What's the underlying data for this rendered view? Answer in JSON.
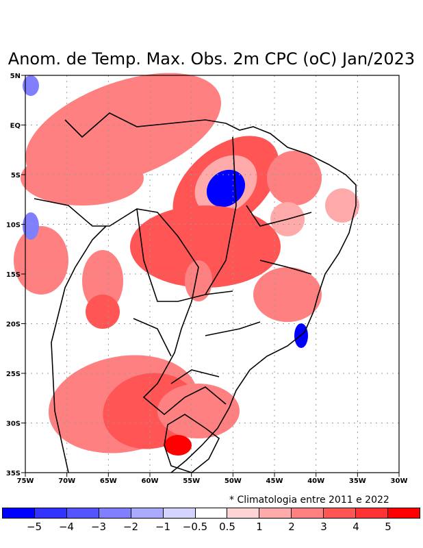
{
  "title": "Anom. de Temp. Max. Obs. 2m CPC (oC) Jan/2023",
  "axes": {
    "lat_labels": [
      "5N",
      "EQ",
      "5S",
      "10S",
      "15S",
      "20S",
      "25S",
      "30S",
      "35S"
    ],
    "lon_labels": [
      "75W",
      "70W",
      "65W",
      "60W",
      "55W",
      "50W",
      "45W",
      "40W",
      "35W",
      "30W"
    ]
  },
  "note": "* Climatologia entre 2011 e 2022",
  "colorbar": {
    "colors": [
      "#0000ff",
      "#3333ff",
      "#5555ff",
      "#8080ff",
      "#aaaaff",
      "#d4d4ff",
      "#ffffff",
      "#ffd4d4",
      "#ffaaaa",
      "#ff8080",
      "#ff5555",
      "#ff3333",
      "#ff0000"
    ],
    "labels": [
      "-5",
      "-4",
      "-3",
      "-2",
      "-1",
      "-0.5",
      "0.5",
      "1",
      "2",
      "3",
      "4",
      "5"
    ]
  }
}
